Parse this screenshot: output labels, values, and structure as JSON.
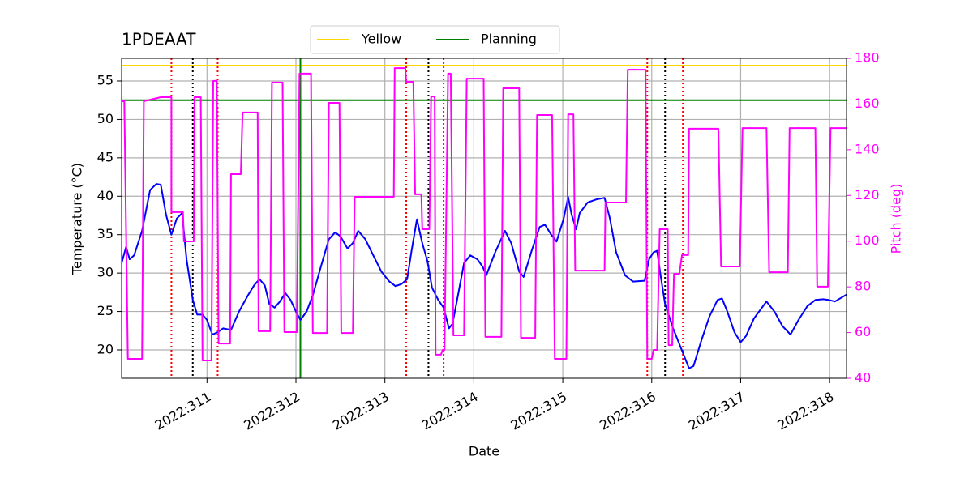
{
  "chart_data": {
    "type": "line",
    "title": "1PDEAAT",
    "xlabel": "Date",
    "ylabel": "Temperature (°C)",
    "y2label": "Pitch (deg)",
    "xlim": [
      310.04,
      318.19
    ],
    "ylim": [
      16.31,
      57.95
    ],
    "y2lim": [
      40,
      180
    ],
    "xticks": [
      {
        "value": 311,
        "label": "2022:311"
      },
      {
        "value": 312,
        "label": "2022:312"
      },
      {
        "value": 313,
        "label": "2022:313"
      },
      {
        "value": 314,
        "label": "2022:314"
      },
      {
        "value": 315,
        "label": "2022:315"
      },
      {
        "value": 316,
        "label": "2022:316"
      },
      {
        "value": 317,
        "label": "2022:317"
      },
      {
        "value": 318,
        "label": "2022:318"
      }
    ],
    "yticks": [
      20,
      25,
      30,
      35,
      40,
      45,
      50,
      55
    ],
    "y2ticks": [
      40,
      60,
      80,
      100,
      120,
      140,
      160,
      180
    ],
    "grid": true,
    "legend": "upper center",
    "y2color": "#ff00ff",
    "hlines": [
      {
        "name": "Yellow",
        "value": 57,
        "color": "#ffd700"
      },
      {
        "name": "Planning",
        "value": 52.5,
        "color": "#008000"
      }
    ],
    "vlines": [
      {
        "x": 312.05,
        "color": "#008000",
        "style": "solid"
      },
      {
        "x": 310.84,
        "color": "#000000",
        "style": "dotted"
      },
      {
        "x": 313.49,
        "color": "#000000",
        "style": "dotted"
      },
      {
        "x": 316.15,
        "color": "#000000",
        "style": "dotted"
      },
      {
        "x": 310.6,
        "color": "#ff0000",
        "style": "dotted"
      },
      {
        "x": 311.12,
        "color": "#ff0000",
        "style": "dotted"
      },
      {
        "x": 313.24,
        "color": "#ff0000",
        "style": "dotted"
      },
      {
        "x": 313.66,
        "color": "#ff0000",
        "style": "dotted"
      },
      {
        "x": 315.95,
        "color": "#ff0000",
        "style": "dotted"
      },
      {
        "x": 316.35,
        "color": "#ff0000",
        "style": "dotted"
      }
    ],
    "series": [
      {
        "color": "#0000ff",
        "axis": "y",
        "x": [
          310.04,
          310.09,
          310.13,
          310.18,
          310.27,
          310.36,
          310.43,
          310.48,
          310.54,
          310.6,
          310.66,
          310.72,
          310.77,
          310.84,
          310.89,
          310.95,
          311.0,
          311.06,
          311.12,
          311.18,
          311.27,
          311.36,
          311.46,
          311.53,
          311.59,
          311.65,
          311.7,
          311.76,
          311.82,
          311.88,
          311.94,
          312.0,
          312.05,
          312.12,
          312.19,
          312.28,
          312.37,
          312.44,
          312.5,
          312.58,
          312.64,
          312.7,
          312.78,
          312.87,
          312.96,
          313.05,
          313.12,
          313.19,
          313.25,
          313.3,
          313.36,
          313.42,
          313.48,
          313.53,
          313.6,
          313.66,
          313.72,
          313.76,
          313.83,
          313.89,
          313.96,
          314.04,
          314.1,
          314.14,
          314.24,
          314.35,
          314.42,
          314.51,
          314.56,
          314.65,
          314.74,
          314.8,
          314.87,
          314.93,
          315.01,
          315.06,
          315.1,
          315.15,
          315.19,
          315.28,
          315.38,
          315.47,
          315.53,
          315.6,
          315.7,
          315.79,
          315.92,
          315.97,
          316.02,
          316.06,
          316.1,
          316.15,
          316.24,
          316.33,
          316.42,
          316.47,
          316.56,
          316.65,
          316.74,
          316.79,
          316.85,
          316.93,
          317.0,
          317.06,
          317.15,
          317.29,
          317.38,
          317.47,
          317.56,
          317.65,
          317.75,
          317.84,
          317.93,
          317.99,
          318.06,
          318.19
        ],
        "values": [
          31.3,
          33.4,
          31.8,
          32.3,
          35.5,
          40.8,
          41.6,
          41.5,
          37.6,
          35.0,
          37.1,
          37.8,
          31.8,
          26.5,
          24.6,
          24.6,
          23.9,
          22.0,
          22.3,
          22.8,
          22.6,
          25.0,
          27.1,
          28.4,
          29.2,
          28.4,
          26.0,
          25.5,
          26.3,
          27.4,
          26.5,
          25.0,
          23.9,
          25.0,
          27.1,
          30.8,
          34.4,
          35.3,
          34.8,
          33.2,
          33.9,
          35.5,
          34.4,
          32.3,
          30.2,
          28.9,
          28.3,
          28.6,
          29.2,
          32.9,
          37.0,
          33.9,
          31.5,
          28.1,
          26.5,
          25.5,
          22.8,
          23.4,
          27.6,
          31.3,
          32.3,
          31.8,
          30.8,
          29.7,
          32.7,
          35.5,
          33.9,
          30.2,
          29.5,
          32.9,
          36.0,
          36.3,
          35.0,
          34.1,
          37.1,
          39.9,
          37.6,
          35.7,
          37.8,
          39.2,
          39.6,
          39.8,
          37.1,
          32.7,
          29.7,
          28.9,
          29.0,
          31.8,
          32.7,
          32.9,
          29.7,
          26.0,
          22.8,
          20.2,
          17.6,
          17.9,
          21.3,
          24.4,
          26.5,
          26.7,
          25.0,
          22.3,
          21.0,
          21.8,
          24.1,
          26.3,
          25.0,
          23.1,
          22.0,
          23.9,
          25.7,
          26.5,
          26.6,
          26.5,
          26.3,
          27.2
        ]
      },
      {
        "color": "#ff00ff",
        "axis": "y2",
        "x": [
          310.04,
          310.07,
          310.11,
          310.27,
          310.29,
          310.48,
          310.6,
          310.6,
          310.73,
          310.74,
          310.85,
          310.86,
          310.93,
          310.95,
          311.05,
          311.07,
          311.11,
          311.13,
          311.26,
          311.27,
          311.38,
          311.4,
          311.57,
          311.58,
          311.71,
          311.73,
          311.85,
          311.87,
          312.01,
          312.04,
          312.17,
          312.19,
          312.35,
          312.37,
          312.49,
          312.51,
          312.64,
          312.66,
          313.1,
          313.11,
          313.23,
          313.24,
          313.32,
          313.34,
          313.41,
          313.42,
          313.5,
          313.52,
          313.56,
          313.57,
          313.63,
          313.65,
          313.67,
          313.71,
          313.74,
          313.77,
          313.89,
          313.92,
          314.11,
          314.13,
          314.31,
          314.33,
          314.51,
          314.53,
          314.69,
          314.71,
          314.88,
          314.91,
          315.04,
          315.06,
          315.12,
          315.14,
          315.47,
          315.48,
          315.71,
          315.73,
          315.93,
          315.95,
          316.0,
          316.02,
          316.06,
          316.09,
          316.18,
          316.19,
          316.23,
          316.25,
          316.31,
          316.34,
          316.41,
          316.42,
          316.75,
          316.78,
          316.99,
          317.02,
          317.29,
          317.32,
          317.53,
          317.55,
          317.84,
          317.86,
          317.98,
          318.01,
          318.19
        ],
        "values": [
          161.2,
          161.2,
          48.5,
          48.5,
          161.2,
          163.0,
          163.0,
          112.7,
          112.7,
          99.9,
          99.9,
          163.0,
          163.0,
          47.8,
          47.8,
          170.1,
          170.1,
          55.2,
          55.2,
          129.3,
          129.3,
          156.3,
          156.3,
          60.6,
          60.6,
          169.4,
          169.4,
          60.2,
          60.2,
          173.3,
          173.3,
          59.8,
          59.8,
          160.5,
          160.5,
          59.8,
          59.8,
          119.4,
          119.4,
          175.7,
          175.7,
          169.7,
          169.7,
          120.5,
          120.5,
          105.2,
          105.2,
          163.3,
          163.3,
          50.3,
          50.3,
          52.4,
          52.4,
          173.3,
          173.3,
          58.8,
          58.8,
          171.1,
          171.1,
          58.1,
          58.1,
          166.9,
          166.9,
          57.7,
          57.7,
          155.2,
          155.2,
          48.5,
          48.5,
          155.5,
          155.5,
          87.1,
          87.1,
          116.9,
          116.9,
          175.0,
          175.0,
          48.5,
          48.5,
          52.4,
          52.4,
          105.2,
          105.2,
          54.5,
          54.5,
          85.7,
          85.7,
          93.9,
          93.9,
          149.2,
          149.2,
          88.9,
          88.9,
          149.5,
          149.5,
          86.4,
          86.4,
          149.5,
          149.5,
          80.1,
          80.1,
          149.5,
          149.5
        ]
      }
    ]
  }
}
